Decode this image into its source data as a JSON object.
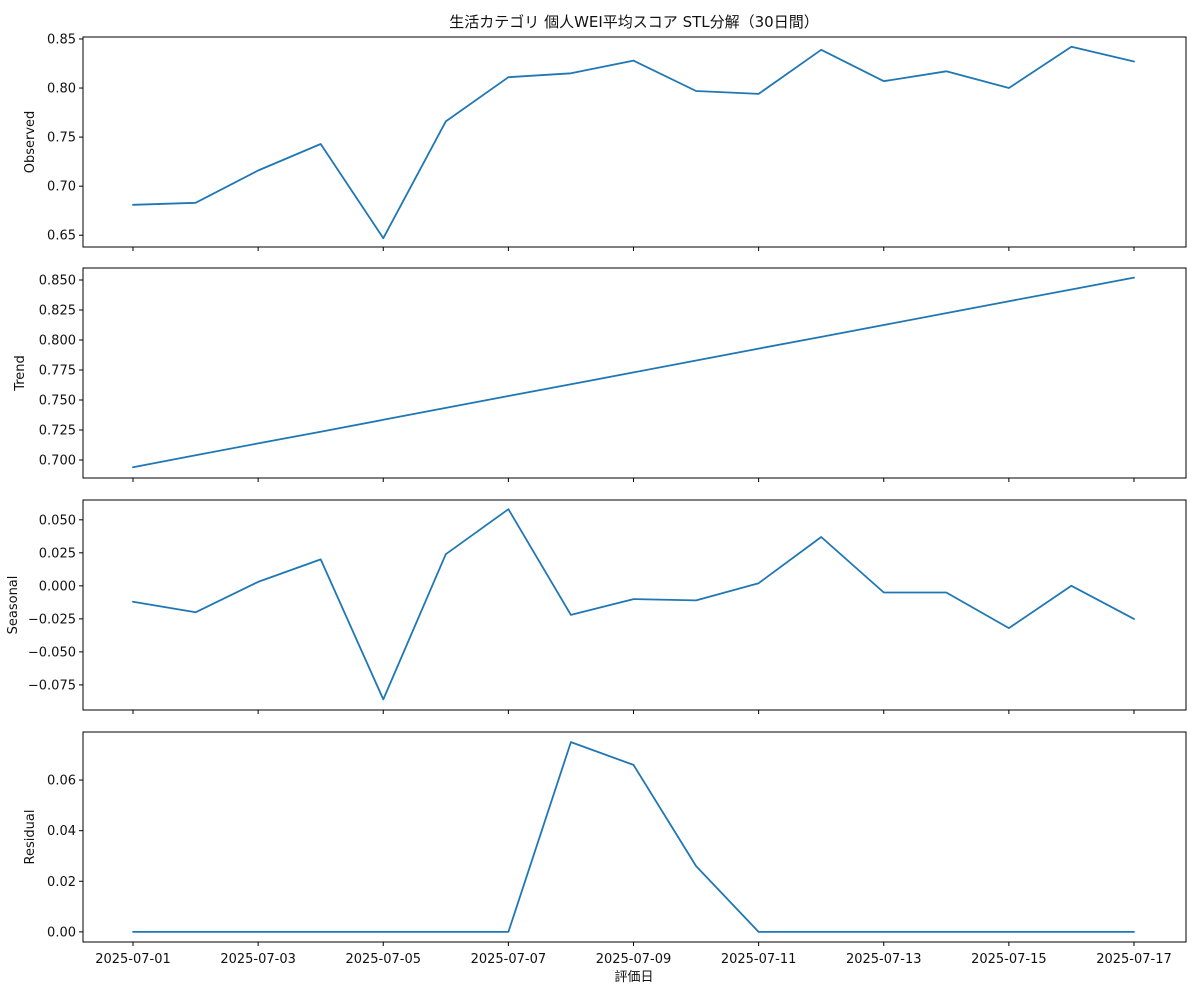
{
  "chart_data": {
    "type": "line",
    "title": "生活カテゴリ 個人WEI平均スコア STL分解（30日間）",
    "xlabel": "評価日",
    "line_color": "#1f77b4",
    "x": [
      "2025-07-01",
      "2025-07-02",
      "2025-07-03",
      "2025-07-04",
      "2025-07-05",
      "2025-07-06",
      "2025-07-07",
      "2025-07-08",
      "2025-07-09",
      "2025-07-10",
      "2025-07-11",
      "2025-07-12",
      "2025-07-13",
      "2025-07-14",
      "2025-07-15",
      "2025-07-16",
      "2025-07-17"
    ],
    "x_tick_labels": [
      "2025-07-01",
      "2025-07-03",
      "2025-07-05",
      "2025-07-07",
      "2025-07-09",
      "2025-07-11",
      "2025-07-13",
      "2025-07-15",
      "2025-07-17"
    ],
    "panels": [
      {
        "ylabel": "Observed",
        "ylim": [
          0.638,
          0.852
        ],
        "yticks": [
          0.65,
          0.7,
          0.75,
          0.8,
          0.85
        ],
        "ytick_labels": [
          "0.65",
          "0.70",
          "0.75",
          "0.80",
          "0.85"
        ],
        "values": [
          0.681,
          0.683,
          0.716,
          0.743,
          0.647,
          0.766,
          0.811,
          0.815,
          0.828,
          0.797,
          0.794,
          0.839,
          0.807,
          0.817,
          0.8,
          0.842,
          0.827
        ]
      },
      {
        "ylabel": "Trend",
        "ylim": [
          0.685,
          0.86
        ],
        "yticks": [
          0.7,
          0.725,
          0.75,
          0.775,
          0.8,
          0.825,
          0.85
        ],
        "ytick_labels": [
          "0.700",
          "0.725",
          "0.750",
          "0.775",
          "0.800",
          "0.825",
          "0.850"
        ],
        "values": [
          0.694,
          0.7039,
          0.7138,
          0.7236,
          0.7335,
          0.7434,
          0.7533,
          0.7631,
          0.773,
          0.7829,
          0.7928,
          0.8026,
          0.8125,
          0.8224,
          0.8323,
          0.8421,
          0.852
        ]
      },
      {
        "ylabel": "Seasonal",
        "ylim": [
          -0.094,
          0.065
        ],
        "yticks": [
          -0.075,
          -0.05,
          -0.025,
          0.0,
          0.025,
          0.05
        ],
        "ytick_labels": [
          "−0.075",
          "−0.050",
          "−0.025",
          "0.000",
          "0.025",
          "0.050"
        ],
        "values": [
          -0.012,
          -0.02,
          0.003,
          0.02,
          -0.086,
          0.024,
          0.058,
          -0.022,
          -0.01,
          -0.011,
          0.002,
          0.037,
          -0.005,
          -0.005,
          -0.032,
          0.0,
          -0.025
        ]
      },
      {
        "ylabel": "Residual",
        "ylim": [
          -0.004,
          0.079
        ],
        "yticks": [
          0.0,
          0.02,
          0.04,
          0.06
        ],
        "ytick_labels": [
          "0.00",
          "0.02",
          "0.04",
          "0.06"
        ],
        "values": [
          0,
          0,
          0,
          0,
          0,
          0,
          0,
          0.075,
          0.066,
          0.026,
          0,
          0,
          0,
          0,
          0,
          0,
          0
        ]
      }
    ]
  }
}
